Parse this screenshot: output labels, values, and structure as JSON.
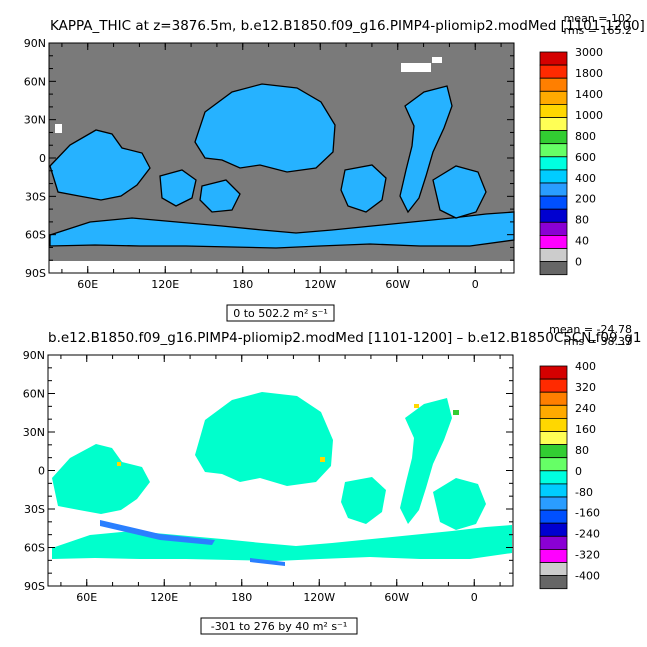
{
  "chart_data": [
    {
      "type": "heatmap",
      "title": "KAPPA_THIC at z=3876.5m, b.e12.B1850.f09_g16.PIMP4-pliomip2.modMed [1101-1200]",
      "stats": {
        "mean": "mean = 102",
        "rms": "rms = 165.2"
      },
      "range_label": "0 to 502.2 m² s⁻¹",
      "lat_ticks": [
        "90N",
        "60N",
        "30N",
        "0",
        "30S",
        "60S",
        "90S"
      ],
      "lon_ticks": [
        "60E",
        "120E",
        "180",
        "120W",
        "60W",
        "0"
      ],
      "colorbar": {
        "labels": [
          "3000",
          "1800",
          "1400",
          "1000",
          "800",
          "600",
          "400",
          "200",
          "80",
          "40",
          "0"
        ],
        "colors": [
          "#d40000",
          "#ff2a00",
          "#ff7f00",
          "#ffaa00",
          "#ffd700",
          "#ffff55",
          "#32cd32",
          "#66ff66",
          "#00ffe0",
          "#00ccff",
          "#2a9dff",
          "#0050ff",
          "#0000d0",
          "#8a00d4",
          "#ff00ff",
          "#cccccc",
          "#666666"
        ]
      },
      "background_color": "#7a7a7a",
      "field_color": "#26b2ff"
    },
    {
      "type": "heatmap",
      "title": "b.e12.B1850.f09_g16.PIMP4-pliomip2.modMed [1101-1200] – b.e12.B1850C5CN.f09_g1",
      "stats": {
        "mean": "mean = -24.78",
        "rms": "rms = 38.37"
      },
      "range_label": "-301 to 276 by 40 m² s⁻¹",
      "lat_ticks": [
        "90N",
        "60N",
        "30N",
        "0",
        "30S",
        "60S",
        "90S"
      ],
      "lon_ticks": [
        "60E",
        "120E",
        "180",
        "120W",
        "60W",
        "0"
      ],
      "colorbar": {
        "labels": [
          "400",
          "320",
          "240",
          "160",
          "80",
          "0",
          "-80",
          "-160",
          "-240",
          "-320",
          "-400"
        ],
        "colors": [
          "#d40000",
          "#ff2a00",
          "#ff7f00",
          "#ffaa00",
          "#ffd700",
          "#ffff55",
          "#32cd32",
          "#66ff66",
          "#00ffe0",
          "#00ccff",
          "#2a9dff",
          "#0050ff",
          "#0000d0",
          "#8a00d4",
          "#ff00ff",
          "#cccccc",
          "#666666"
        ]
      },
      "background_color": "#ffffff",
      "field_color": "#00ffcc"
    }
  ]
}
